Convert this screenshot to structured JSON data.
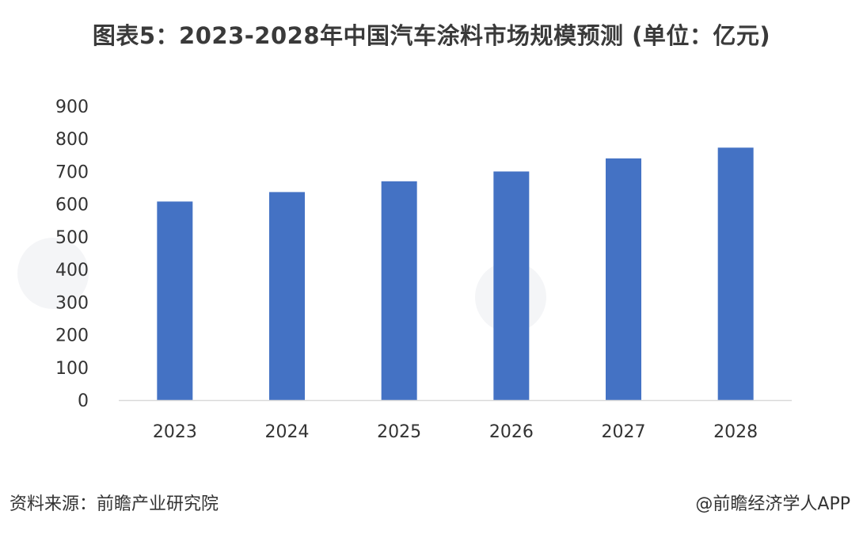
{
  "title": "图表5：2023-2028年中国汽车涂料市场规模预测 (单位：亿元)",
  "source_label": "资料来源：前瞻产业研究院",
  "credit_label": "@前瞻经济学人APP",
  "colors": {
    "bar": "#4472C4",
    "axis_line": "#d9d9d9",
    "tick_text": "#333333"
  },
  "chart_data": {
    "type": "bar",
    "title": "图表5：2023-2028年中国汽车涂料市场规模预测 (单位：亿元)",
    "categories": [
      "2023",
      "2024",
      "2025",
      "2026",
      "2027",
      "2028"
    ],
    "series": [
      {
        "values": [
          608,
          637,
          670,
          700,
          740,
          773
        ]
      }
    ],
    "xlabel": "",
    "ylabel": "",
    "ylim": [
      0,
      900
    ],
    "yticks": [
      0,
      100,
      200,
      300,
      400,
      500,
      600,
      700,
      800,
      900
    ],
    "grid": false,
    "legend": "none"
  }
}
